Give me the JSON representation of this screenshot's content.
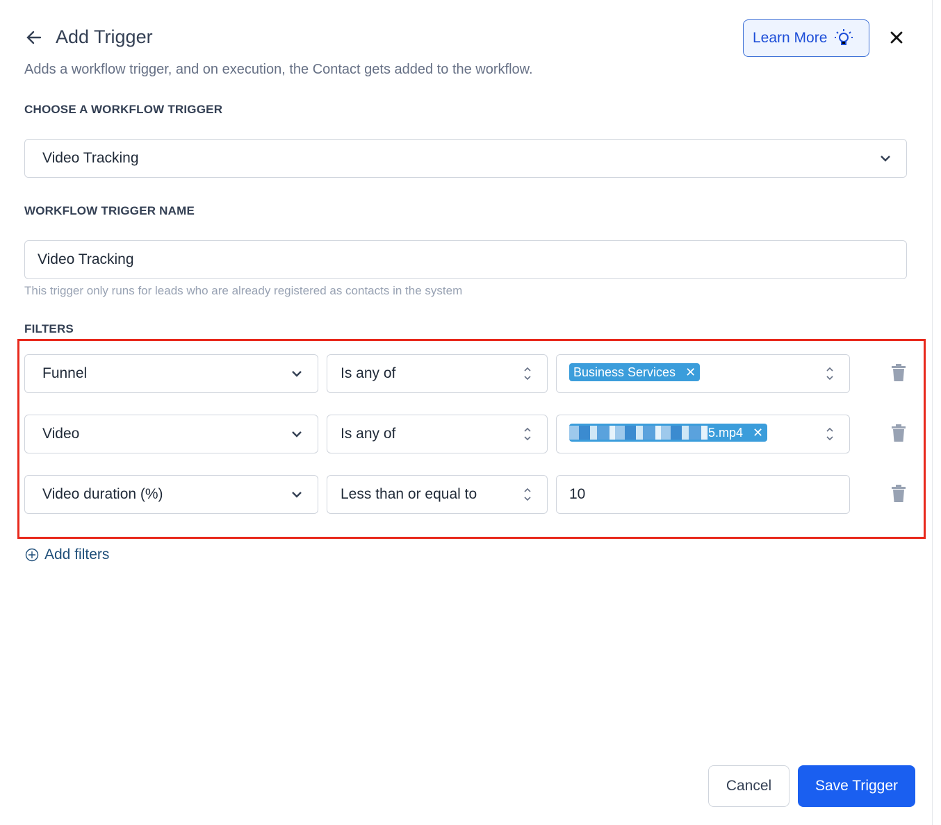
{
  "header": {
    "title": "Add Trigger",
    "description": "Adds a workflow trigger, and on execution, the Contact gets added to the workflow.",
    "learn_more": "Learn More"
  },
  "trigger": {
    "label": "CHOOSE A WORKFLOW TRIGGER",
    "value": "Video Tracking"
  },
  "name": {
    "label": "WORKFLOW TRIGGER NAME",
    "value": "Video Tracking",
    "help": "This trigger only runs for leads who are already registered as contacts in the system"
  },
  "filters": {
    "label": "FILTERS",
    "rows": [
      {
        "field": "Funnel",
        "operator": "Is any of",
        "tag": "Business Services"
      },
      {
        "field": "Video",
        "operator": "Is any of",
        "tag": "5.mp4"
      },
      {
        "field": "Video duration (%)",
        "operator": "Less than or equal to",
        "value": "10"
      }
    ],
    "add": "Add filters"
  },
  "footer": {
    "cancel": "Cancel",
    "save": "Save Trigger"
  },
  "colors": {
    "accent": "#1a5ff0",
    "tag": "#3b9ddb",
    "highlight": "#e8291c"
  }
}
